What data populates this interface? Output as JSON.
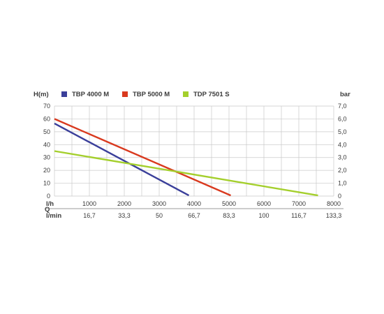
{
  "chart_data": {
    "type": "line",
    "y_left_label": "H(m)",
    "y_right_label": "bar",
    "x_label_primary": "l/h",
    "x_label_secondary": "l/min",
    "q_label": "Q",
    "x_range": [
      0,
      8000
    ],
    "y_range": [
      0,
      70
    ],
    "grid": true,
    "legend_position": "top",
    "x_ticks_lh": [
      "1000",
      "2000",
      "3000",
      "4000",
      "5000",
      "6000",
      "7000",
      "8000"
    ],
    "x_ticks_lmin": [
      "16,7",
      "33,3",
      "50",
      "66,7",
      "83,3",
      "100",
      "116,7",
      "133,3"
    ],
    "y_ticks_left": [
      "70",
      "60",
      "50",
      "40",
      "30",
      "20",
      "10",
      "0"
    ],
    "y_ticks_right": [
      "7,0",
      "6,0",
      "5,0",
      "4,0",
      "3,0",
      "2,0",
      "1,0",
      "0"
    ],
    "series": [
      {
        "name": "TBP 4000 M",
        "color": "#3a3f9a",
        "points": [
          [
            0,
            56.5
          ],
          [
            3850,
            0.5
          ]
        ]
      },
      {
        "name": "TBP 5000 M",
        "color": "#d9391e",
        "points": [
          [
            0,
            60
          ],
          [
            5050,
            0.5
          ]
        ]
      },
      {
        "name": "TDP 7501 S",
        "color": "#a4cf2c",
        "points": [
          [
            0,
            35
          ],
          [
            7550,
            0.5
          ]
        ]
      }
    ]
  }
}
